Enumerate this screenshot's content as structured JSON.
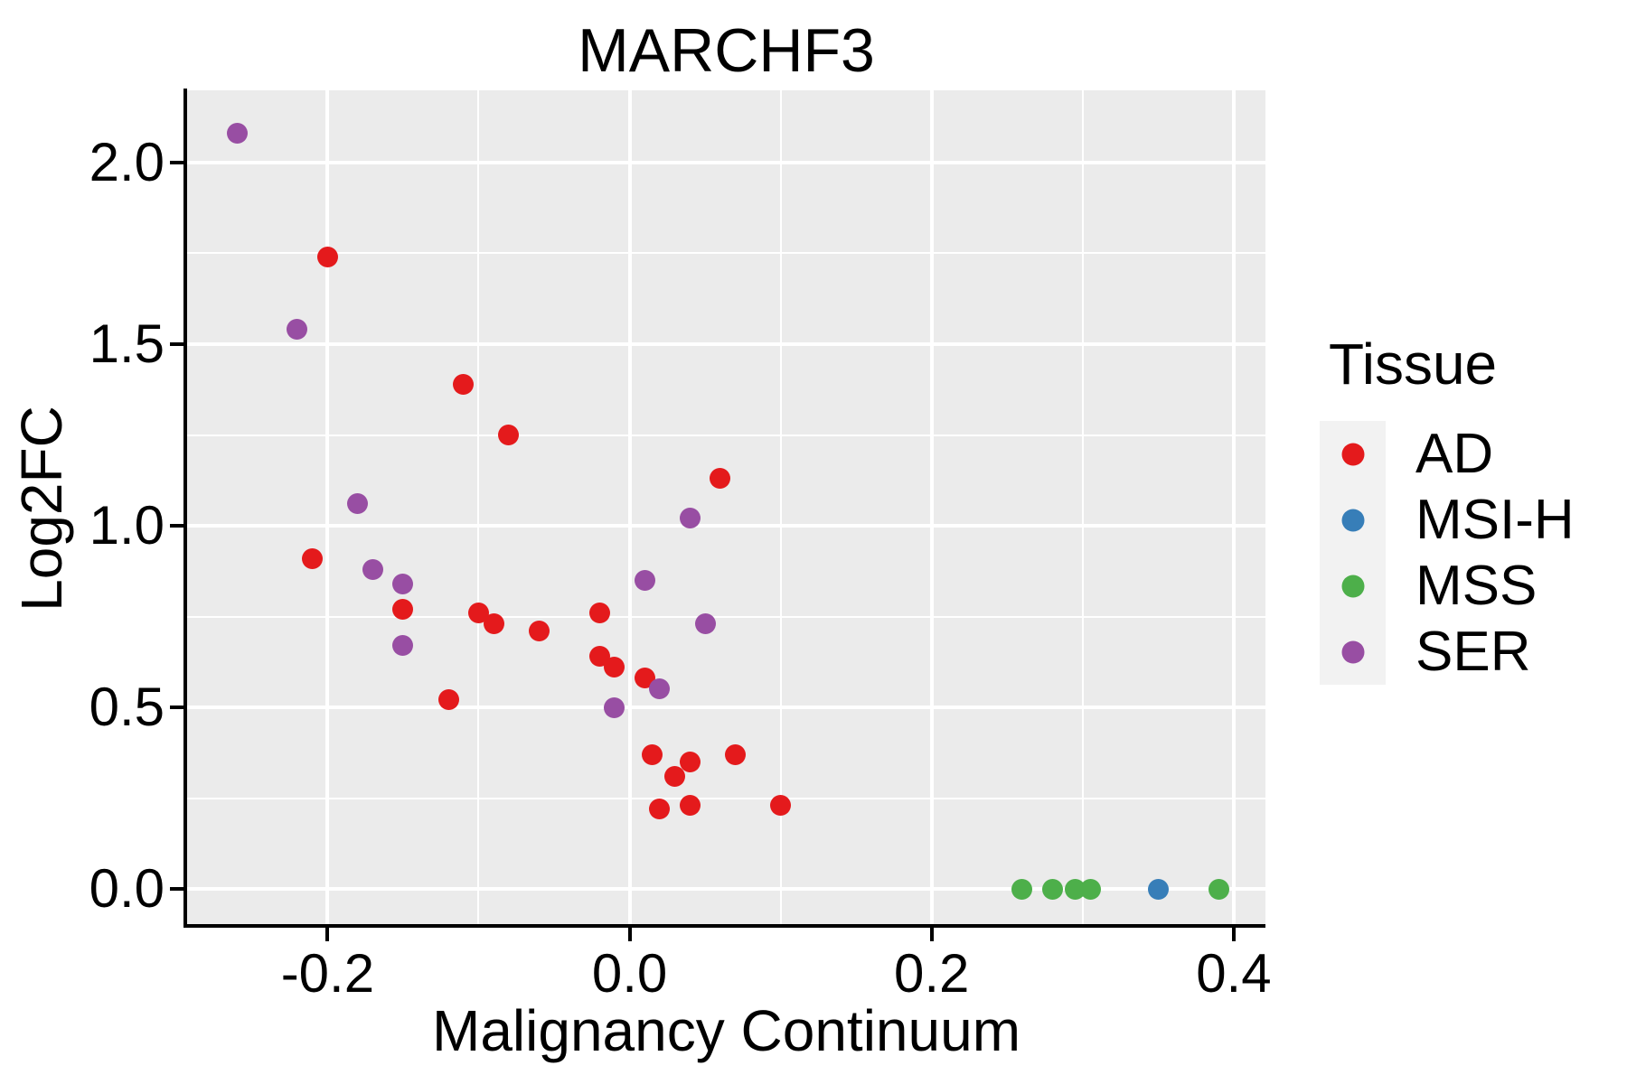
{
  "chart_data": {
    "type": "scatter",
    "title": "MARCHF3",
    "xlabel": "Malignancy Continuum",
    "ylabel": "Log2FC",
    "xlim": [
      -0.293,
      0.421
    ],
    "ylim": [
      -0.097,
      2.199
    ],
    "grid": true,
    "legend_position": "right",
    "x_major_ticks": [
      {
        "value": -0.2,
        "label": "-0.2"
      },
      {
        "value": 0.0,
        "label": "0.0"
      },
      {
        "value": 0.2,
        "label": "0.2"
      },
      {
        "value": 0.4,
        "label": "0.4"
      }
    ],
    "x_minor_ticks": [
      -0.1,
      0.1,
      0.3
    ],
    "y_major_ticks": [
      {
        "value": 0.0,
        "label": "0.0"
      },
      {
        "value": 0.5,
        "label": "0.5"
      },
      {
        "value": 1.0,
        "label": "1.0"
      },
      {
        "value": 1.5,
        "label": "1.5"
      },
      {
        "value": 2.0,
        "label": "2.0"
      }
    ],
    "y_minor_ticks": [
      0.25,
      0.75,
      1.25,
      1.75
    ],
    "series": [
      {
        "name": "AD",
        "color": "#E41A1C",
        "points": [
          [
            -0.2,
            1.74
          ],
          [
            -0.11,
            1.39
          ],
          [
            -0.08,
            1.25
          ],
          [
            0.06,
            1.13
          ],
          [
            -0.21,
            0.91
          ],
          [
            -0.15,
            0.77
          ],
          [
            -0.1,
            0.76
          ],
          [
            -0.09,
            0.73
          ],
          [
            -0.06,
            0.71
          ],
          [
            -0.02,
            0.76
          ],
          [
            -0.12,
            0.52
          ],
          [
            -0.02,
            0.64
          ],
          [
            -0.01,
            0.61
          ],
          [
            0.01,
            0.58
          ],
          [
            0.015,
            0.37
          ],
          [
            0.04,
            0.35
          ],
          [
            0.03,
            0.31
          ],
          [
            0.07,
            0.37
          ],
          [
            0.02,
            0.22
          ],
          [
            0.04,
            0.23
          ],
          [
            0.1,
            0.23
          ]
        ]
      },
      {
        "name": "MSI-H",
        "color": "#377EB8",
        "points": [
          [
            0.35,
            0.0
          ]
        ]
      },
      {
        "name": "MSS",
        "color": "#4DAF4A",
        "points": [
          [
            0.26,
            0.0
          ],
          [
            0.28,
            0.0
          ],
          [
            0.295,
            0.0
          ],
          [
            0.305,
            0.0
          ],
          [
            0.39,
            0.0
          ]
        ]
      },
      {
        "name": "SER",
        "color": "#984EA3",
        "points": [
          [
            -0.26,
            2.08
          ],
          [
            -0.22,
            1.54
          ],
          [
            -0.18,
            1.06
          ],
          [
            -0.17,
            0.88
          ],
          [
            -0.15,
            0.84
          ],
          [
            -0.15,
            0.67
          ],
          [
            0.04,
            1.02
          ],
          [
            0.01,
            0.85
          ],
          [
            0.05,
            0.73
          ],
          [
            0.02,
            0.55
          ],
          [
            -0.01,
            0.5
          ]
        ]
      }
    ]
  },
  "legend": {
    "title": "Tissue",
    "items": [
      {
        "label": "AD",
        "color": "#E41A1C"
      },
      {
        "label": "MSI-H",
        "color": "#377EB8"
      },
      {
        "label": "MSS",
        "color": "#4DAF4A"
      },
      {
        "label": "SER",
        "color": "#984EA3"
      }
    ]
  },
  "colors": {
    "background": "#FFFFFF",
    "panel_bg": "#EBEBEB",
    "gridline": "#FFFFFF",
    "axis": "#000000",
    "text": "#000000",
    "legend_key_bg": "#F2F2F2"
  }
}
